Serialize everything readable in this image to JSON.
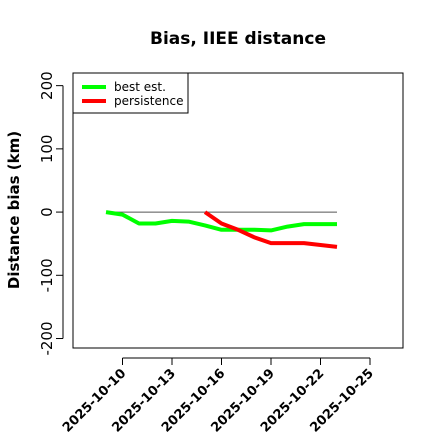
{
  "chart_data": {
    "type": "line",
    "title": "Bias, IIEE distance",
    "xlabel": "",
    "ylabel": "Distance bias (km)",
    "xlim": [
      "2025-10-07",
      "2025-10-27"
    ],
    "ylim": [
      -215,
      220
    ],
    "y_ticks": [
      -200,
      -100,
      0,
      100,
      200
    ],
    "x_ticks": [
      "2025-10-10",
      "2025-10-13",
      "2025-10-16",
      "2025-10-19",
      "2025-10-22",
      "2025-10-25"
    ],
    "grid": false,
    "legend_position": "top-left",
    "reference_line": {
      "y": 0,
      "x_start": "2025-10-09",
      "x_end": "2025-10-23",
      "color": "#555555"
    },
    "series": [
      {
        "name": "best est.",
        "color": "#00ff00",
        "x": [
          "2025-10-09",
          "2025-10-10",
          "2025-10-11",
          "2025-10-12",
          "2025-10-13",
          "2025-10-14",
          "2025-10-15",
          "2025-10-16",
          "2025-10-17",
          "2025-10-18",
          "2025-10-19",
          "2025-10-20",
          "2025-10-21",
          "2025-10-22",
          "2025-10-23"
        ],
        "y": [
          0,
          -4,
          -18,
          -18,
          -14,
          -15,
          -21,
          -28,
          -28,
          -28,
          -29,
          -23,
          -19,
          -19,
          -19
        ]
      },
      {
        "name": "persistence",
        "color": "#ff0000",
        "x": [
          "2025-10-15",
          "2025-10-16",
          "2025-10-17",
          "2025-10-18",
          "2025-10-19",
          "2025-10-20",
          "2025-10-21",
          "2025-10-22",
          "2025-10-23"
        ],
        "y": [
          0,
          -18,
          -28,
          -40,
          -49,
          -49,
          -49,
          -52,
          -55
        ]
      }
    ]
  }
}
